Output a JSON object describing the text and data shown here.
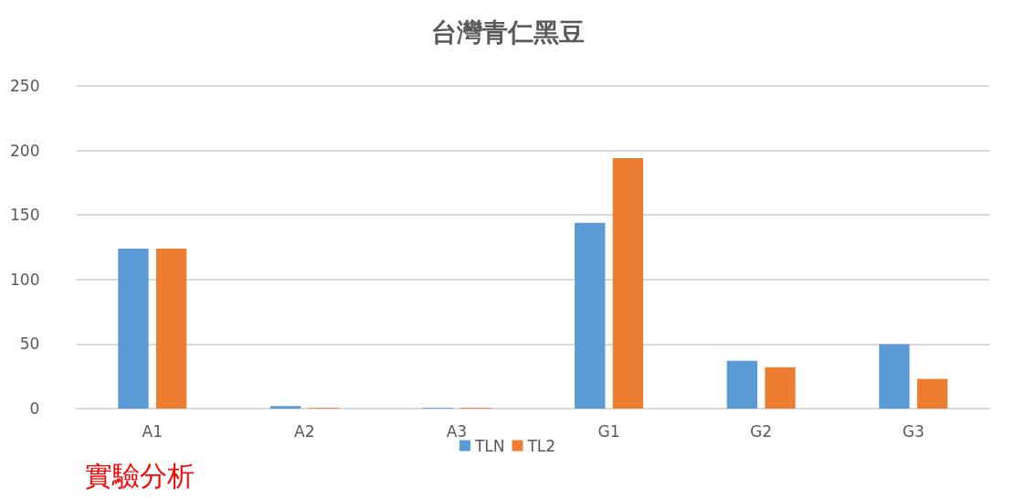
{
  "chart_data": {
    "type": "bar",
    "title": "台灣青仁黑豆",
    "categories": [
      "A1",
      "A2",
      "A3",
      "G1",
      "G2",
      "G3"
    ],
    "series": [
      {
        "name": "TLN",
        "color": "#5b9bd5",
        "values": [
          124,
          2,
          0.5,
          144,
          37,
          50
        ]
      },
      {
        "name": "TL2",
        "color": "#ed7d31",
        "values": [
          124,
          0.5,
          0.5,
          194,
          32,
          23
        ]
      }
    ],
    "ylim": [
      0,
      250
    ],
    "yticks": [
      0,
      50,
      100,
      150,
      200,
      250
    ],
    "grid": "y",
    "legend": "bottom",
    "annotations": [
      "實驗分析"
    ]
  }
}
